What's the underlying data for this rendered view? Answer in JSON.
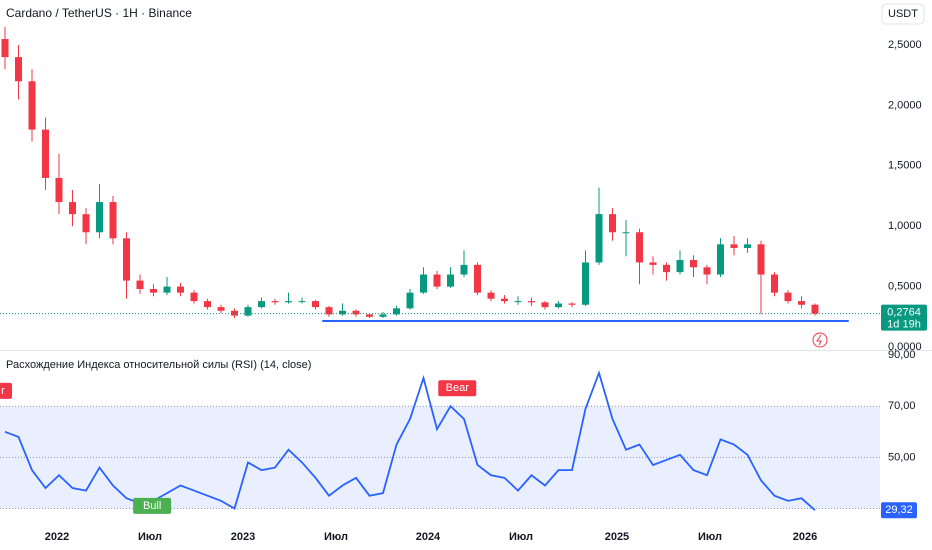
{
  "chart_data": [
    {
      "type": "candlestick",
      "title": "Cardano / TetherUS · 1H · Binance",
      "currency": "USDT",
      "up_color": "#089981",
      "down_color": "#f23645",
      "open": [
        2.55,
        2.4,
        2.2,
        1.8,
        1.4,
        1.2,
        1.1,
        0.95,
        1.2,
        0.9,
        0.55,
        0.48,
        0.45,
        0.5,
        0.45,
        0.38,
        0.33,
        0.3,
        0.26,
        0.33,
        0.38,
        0.37,
        0.38,
        0.38,
        0.33,
        0.27,
        0.3,
        0.27,
        0.25,
        0.27,
        0.32,
        0.45,
        0.6,
        0.5,
        0.6,
        0.68,
        0.45,
        0.4,
        0.38,
        0.38,
        0.37,
        0.33,
        0.36,
        0.35,
        0.7,
        1.1,
        0.95,
        0.95,
        0.7,
        0.68,
        0.62,
        0.72,
        0.66,
        0.6,
        0.85,
        0.82,
        0.85,
        0.6,
        0.45,
        0.38,
        0.35
      ],
      "high": [
        2.65,
        2.5,
        2.3,
        1.9,
        1.6,
        1.3,
        1.15,
        1.35,
        1.25,
        0.95,
        0.6,
        0.52,
        0.58,
        0.53,
        0.47,
        0.4,
        0.35,
        0.32,
        0.35,
        0.41,
        0.4,
        0.45,
        0.41,
        0.39,
        0.34,
        0.36,
        0.31,
        0.28,
        0.29,
        0.34,
        0.48,
        0.66,
        0.63,
        0.66,
        0.8,
        0.7,
        0.47,
        0.43,
        0.42,
        0.41,
        0.38,
        0.38,
        0.37,
        0.8,
        1.32,
        1.15,
        1.05,
        0.98,
        0.75,
        0.7,
        0.8,
        0.76,
        0.68,
        0.9,
        0.92,
        0.9,
        0.88,
        0.62,
        0.47,
        0.42,
        0.36
      ],
      "low": [
        2.3,
        2.05,
        1.7,
        1.3,
        1.1,
        1.0,
        0.85,
        0.9,
        0.85,
        0.4,
        0.44,
        0.42,
        0.43,
        0.42,
        0.36,
        0.31,
        0.28,
        0.24,
        0.25,
        0.32,
        0.35,
        0.36,
        0.36,
        0.31,
        0.25,
        0.26,
        0.25,
        0.24,
        0.24,
        0.26,
        0.31,
        0.44,
        0.48,
        0.49,
        0.58,
        0.43,
        0.38,
        0.36,
        0.35,
        0.34,
        0.31,
        0.32,
        0.33,
        0.34,
        0.68,
        0.88,
        0.75,
        0.52,
        0.6,
        0.55,
        0.6,
        0.58,
        0.52,
        0.58,
        0.76,
        0.78,
        0.27,
        0.42,
        0.36,
        0.32,
        0.26
      ],
      "close": [
        2.4,
        2.2,
        1.8,
        1.4,
        1.2,
        1.1,
        0.95,
        1.2,
        0.9,
        0.55,
        0.48,
        0.45,
        0.5,
        0.45,
        0.38,
        0.33,
        0.3,
        0.26,
        0.33,
        0.38,
        0.37,
        0.38,
        0.38,
        0.33,
        0.27,
        0.3,
        0.27,
        0.25,
        0.27,
        0.32,
        0.45,
        0.6,
        0.5,
        0.6,
        0.68,
        0.45,
        0.4,
        0.38,
        0.38,
        0.37,
        0.33,
        0.36,
        0.35,
        0.7,
        1.1,
        0.95,
        0.95,
        0.7,
        0.68,
        0.62,
        0.72,
        0.66,
        0.6,
        0.85,
        0.82,
        0.85,
        0.6,
        0.45,
        0.38,
        0.35,
        0.2764
      ],
      "ylim": [
        0,
        2.873
      ],
      "yticks": [
        {
          "value": 2.5,
          "label": "2,5000"
        },
        {
          "value": 2.0,
          "label": "2,0000"
        },
        {
          "value": 1.5,
          "label": "1,5000"
        },
        {
          "value": 1.0,
          "label": "1,0000"
        },
        {
          "value": 0.5,
          "label": "0,5000"
        },
        {
          "value": 0,
          "label": "0,0000"
        }
      ],
      "xticks": [
        {
          "value": 3.85,
          "label": "2022"
        },
        {
          "value": 10.74,
          "label": "Июл"
        },
        {
          "value": 17.63,
          "label": "2023"
        },
        {
          "value": 24.52,
          "label": "Июл"
        },
        {
          "value": 31.33,
          "label": "2024"
        },
        {
          "value": 38.22,
          "label": "Июл"
        },
        {
          "value": 45.33,
          "label": "2025"
        },
        {
          "value": 52.22,
          "label": "Июл"
        },
        {
          "value": 59.26,
          "label": "2026"
        }
      ],
      "last_price": 0.2764,
      "last_price_label": "0,2764",
      "countdown": "1d 19h",
      "hline": {
        "value": 0.215,
        "from": 23.5,
        "to": 62.5,
        "color": "#2962ff"
      }
    },
    {
      "type": "line",
      "title": "Расхождение Индекса относительной силы (RSI) (14, close)",
      "color": "#2962ff",
      "values": [
        60,
        58,
        45,
        38,
        43,
        38,
        37,
        46,
        39,
        34,
        32,
        33,
        36,
        39,
        37,
        35,
        33,
        30,
        48,
        45,
        46,
        53,
        48,
        42,
        35,
        39,
        42,
        35,
        36,
        55,
        65,
        81,
        61,
        70,
        65,
        47,
        43,
        42,
        37,
        43,
        39,
        45,
        45,
        69,
        83,
        65,
        53,
        55,
        47,
        49,
        51,
        45,
        43,
        57,
        55,
        51,
        41,
        35,
        33,
        34,
        29.32
      ],
      "ylim": [
        25.5,
        91.2
      ],
      "yticks": [
        {
          "value": 90,
          "label": "90,00"
        },
        {
          "value": 70,
          "label": "70,00"
        },
        {
          "value": 50,
          "label": "50,00"
        }
      ],
      "band": [
        30,
        70
      ],
      "levels": [
        70,
        50,
        30
      ],
      "last_label": "29,32",
      "annotations": [
        {
          "text": "Bull",
          "x": 10.9,
          "y": 31,
          "color": "#4caf50"
        },
        {
          "text": "Bear",
          "x": 33.5,
          "y": 77,
          "color": "#f23645"
        },
        {
          "text": "r",
          "x": -0.37,
          "y": 76,
          "color": "#f23645"
        }
      ]
    }
  ]
}
